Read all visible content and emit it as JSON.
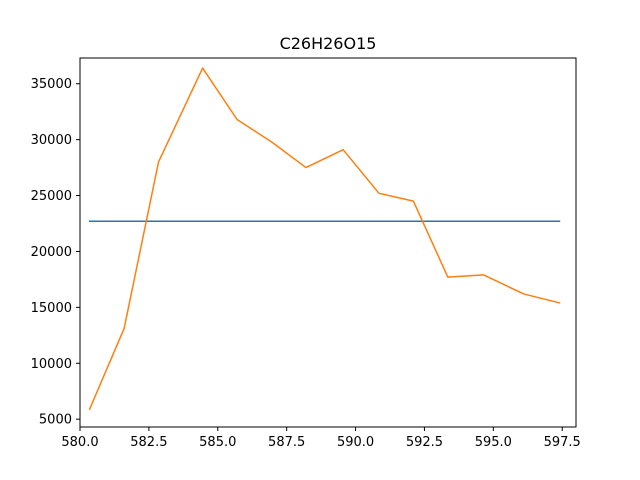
{
  "chart_data": {
    "type": "line",
    "title": "C26H26O15",
    "xlabel": "",
    "ylabel": "",
    "xlim": [
      580.0,
      598.0
    ],
    "ylim": [
      4300,
      37300
    ],
    "x_ticks": [
      580.0,
      582.5,
      585.0,
      587.5,
      590.0,
      592.5,
      595.0,
      597.5
    ],
    "x_tick_labels": [
      "580.0",
      "582.5",
      "585.0",
      "587.5",
      "590.0",
      "592.5",
      "595.0",
      "597.5"
    ],
    "y_ticks": [
      5000,
      10000,
      15000,
      20000,
      25000,
      30000,
      35000
    ],
    "y_tick_labels": [
      "5000",
      "10000",
      "15000",
      "20000",
      "25000",
      "30000",
      "35000"
    ],
    "grid": false,
    "series": [
      {
        "color": "#1f77b4",
        "x": [
          580.35,
          597.4
        ],
        "y": [
          22700,
          22700
        ]
      },
      {
        "color": "#ff7f0e",
        "x": [
          580.35,
          581.6,
          582.85,
          584.45,
          585.7,
          586.95,
          588.2,
          589.55,
          590.85,
          592.1,
          593.35,
          594.65,
          596.1,
          597.4
        ],
        "y": [
          5900,
          13100,
          28000,
          36400,
          31800,
          29800,
          27500,
          29100,
          25200,
          24500,
          17700,
          17900,
          16200,
          15400
        ]
      }
    ]
  }
}
